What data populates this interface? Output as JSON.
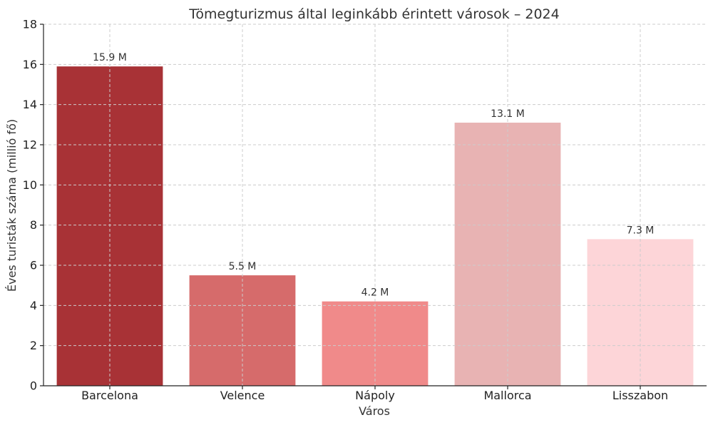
{
  "chart_data": {
    "type": "bar",
    "title": "Tömegturizmus által leginkább érintett városok – 2024",
    "xlabel": "Város",
    "ylabel": "Éves turisták száma (millió fő)",
    "categories": [
      "Barcelona",
      "Velence",
      "Nápoly",
      "Mallorca",
      "Lisszabon"
    ],
    "values": [
      15.9,
      5.5,
      4.2,
      13.1,
      7.3
    ],
    "data_labels": [
      "15.9 M",
      "5.5 M",
      "4.2 M",
      "13.1 M",
      "7.3 M"
    ],
    "colors": [
      "#a83236",
      "#d66b6b",
      "#f08a8a",
      "#e8b3b3",
      "#fdd5d8"
    ],
    "ylim": [
      0,
      18
    ],
    "yticks": [
      "0",
      "2",
      "4",
      "6",
      "8",
      "10",
      "12",
      "14",
      "16",
      "18"
    ],
    "grid": true,
    "legend": "none"
  }
}
